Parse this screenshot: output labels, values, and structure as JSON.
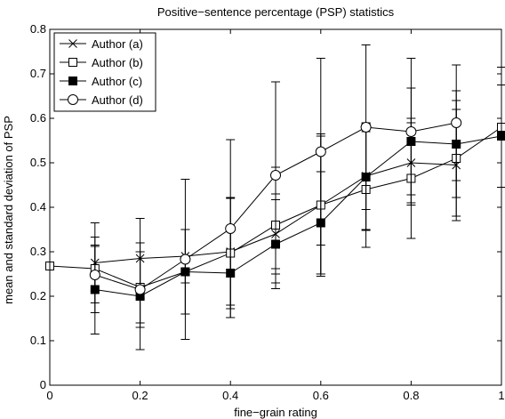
{
  "chart_data": {
    "type": "line",
    "title": "Positive−sentence percentage (PSP) statistics",
    "xlabel": "fine−grain rating",
    "ylabel": "mean and standard deviation of PSP",
    "xlim": [
      0,
      1
    ],
    "ylim": [
      0,
      0.8
    ],
    "xticks": [
      0,
      0.2,
      0.4,
      0.6,
      0.8,
      1
    ],
    "xtick_labels": [
      "0",
      "0.2",
      "0.4",
      "0.6",
      "0.8",
      "1"
    ],
    "yticks": [
      0,
      0.1,
      0.2,
      0.3,
      0.4,
      0.5,
      0.6,
      0.7,
      0.8
    ],
    "ytick_labels": [
      "0",
      "0.1",
      "0.2",
      "0.3",
      "0.4",
      "0.5",
      "0.6",
      "0.7",
      "0.8"
    ],
    "grid": false,
    "legend_position": "top-left",
    "series": [
      {
        "name": "Author (a)",
        "marker": "x",
        "color": "#000000",
        "x": [
          0.1,
          0.2,
          0.3,
          0.4,
          0.5,
          0.6,
          0.7,
          0.8,
          0.9
        ],
        "y": [
          0.275,
          0.285,
          0.29,
          0.3,
          0.34,
          0.405,
          0.47,
          0.5,
          0.495
        ],
        "err": [
          0.09,
          0.09,
          0.06,
          0.12,
          0.09,
          0.16,
          0.12,
          0.09,
          0.125
        ]
      },
      {
        "name": "Author (b)",
        "marker": "square-open",
        "color": "#000000",
        "x": [
          0,
          0.1,
          0.2,
          0.3,
          0.4,
          0.5,
          0.6,
          0.7,
          0.8,
          0.9,
          1.0
        ],
        "y": [
          0.268,
          0.262,
          0.22,
          0.255,
          0.297,
          0.36,
          0.405,
          0.44,
          0.465,
          0.51,
          0.58
        ],
        "err": [
          0,
          0.05,
          0.08,
          0.095,
          0.125,
          0.13,
          0.155,
          0.13,
          0.135,
          0.13,
          0.135
        ]
      },
      {
        "name": "Author (c)",
        "marker": "square-filled",
        "color": "#000000",
        "x": [
          0.1,
          0.2,
          0.3,
          0.4,
          0.5,
          0.6,
          0.7,
          0.8,
          0.9,
          1.0
        ],
        "y": [
          0.215,
          0.2,
          0.255,
          0.252,
          0.317,
          0.365,
          0.468,
          0.548,
          0.542,
          0.56
        ],
        "err": [
          0.1,
          0.12,
          0.095,
          0.1,
          0.1,
          0.115,
          0.12,
          0.12,
          0.12,
          0.115
        ]
      },
      {
        "name": "Author (d)",
        "marker": "circle-open",
        "color": "#000000",
        "x": [
          0.1,
          0.2,
          0.3,
          0.4,
          0.5,
          0.6,
          0.7,
          0.8,
          0.9
        ],
        "y": [
          0.248,
          0.215,
          0.283,
          0.352,
          0.472,
          0.525,
          0.58,
          0.57,
          0.59
        ],
        "err": [
          0.085,
          0.085,
          0.18,
          0.2,
          0.21,
          0.21,
          0.185,
          0.165,
          0.13
        ]
      }
    ]
  }
}
